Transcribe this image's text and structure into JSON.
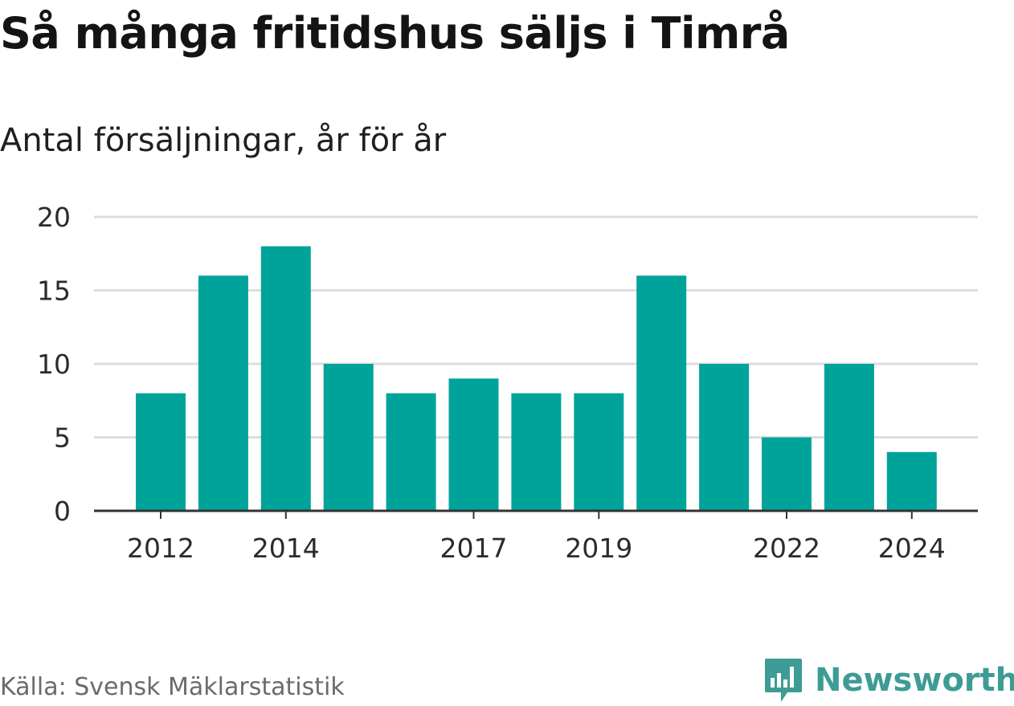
{
  "title": "Så många fritidshus säljs i Timrå",
  "subtitle": "Antal försäljningar, år för år",
  "source": "Källa: Svensk Mäklarstatistik",
  "brand": {
    "name": "Newsworthy",
    "icon": "newsworthy-logo-icon",
    "color": "#3d9c95"
  },
  "colors": {
    "bar": "#00a39a",
    "grid": "#dddddd",
    "axis": "#333333"
  },
  "chart_data": {
    "type": "bar",
    "categories": [
      "2012",
      "2013",
      "2014",
      "2015",
      "2016",
      "2017",
      "2018",
      "2019",
      "2020",
      "2021",
      "2022",
      "2023",
      "2024"
    ],
    "values": [
      8,
      16,
      18,
      10,
      8,
      9,
      8,
      8,
      16,
      10,
      5,
      10,
      4
    ],
    "x_tick_labels": [
      "2012",
      "2014",
      "2017",
      "2019",
      "2022",
      "2024"
    ],
    "y_ticks": [
      0,
      5,
      10,
      15,
      20
    ],
    "ylim": [
      0,
      20
    ],
    "grid": true,
    "title": "Så många fritidshus säljs i Timrå",
    "subtitle": "Antal försäljningar, år för år",
    "xlabel": "",
    "ylabel": ""
  }
}
